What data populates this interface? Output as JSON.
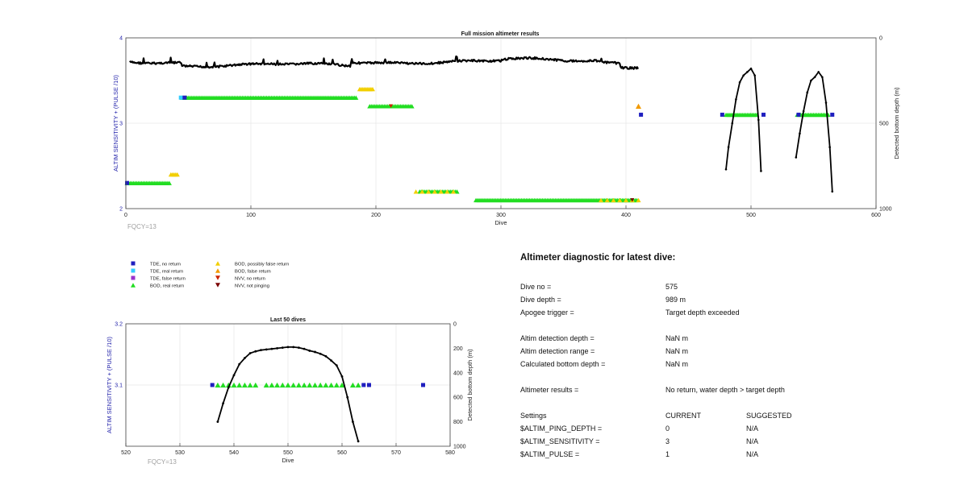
{
  "chart_data": [
    {
      "type": "scatter",
      "title": "Full mission altimeter results",
      "xlabel": "Dive",
      "ylabel": "ALTIM SENSITIVITY + (PULSE /10)",
      "y2label": "Detected bottom depth (m)",
      "xlim": [
        0,
        600
      ],
      "ylim": [
        2,
        4
      ],
      "y2lim": [
        0,
        1000
      ],
      "y2_reversed": true,
      "xticks": [
        0,
        100,
        200,
        300,
        400,
        500,
        600
      ],
      "yticks": [
        2,
        3,
        4
      ],
      "y2ticks": [
        0,
        500,
        1000
      ],
      "annotation": "FQCY=13",
      "grid": true,
      "bod_real_segments": [
        [
          1,
          35,
          2.3
        ],
        [
          45,
          185,
          3.3
        ],
        [
          195,
          230,
          3.2
        ],
        [
          235,
          265,
          2.2
        ],
        [
          280,
          410,
          2.1
        ],
        [
          480,
          505,
          3.1
        ],
        [
          537,
          562,
          3.1
        ]
      ],
      "bod_possibly_false_segments": [
        [
          36,
          42,
          2.4
        ],
        [
          187,
          198,
          3.4
        ],
        [
          232,
          265,
          2.2
        ],
        [
          380,
          410,
          2.1
        ]
      ],
      "tde_no_return": [
        [
          1,
          2.3
        ],
        [
          47,
          3.3
        ],
        [
          412,
          3.1
        ],
        [
          477,
          3.1
        ],
        [
          510,
          3.1
        ],
        [
          538,
          3.1
        ],
        [
          565,
          3.1
        ]
      ],
      "tde_real_return": [
        [
          44,
          3.3
        ]
      ],
      "bod_false_return": [
        [
          410,
          3.2
        ]
      ],
      "nvv_no_return": [
        [
          212,
          3.2
        ]
      ],
      "nvv_not_pinging": [
        [
          405,
          2.1
        ]
      ],
      "mission_depth_line": {
        "x_start": 3,
        "x_end": 410,
        "base": 140,
        "amplitude": 15
      },
      "bottom_depth_arch1": {
        "x": [
          480,
          482,
          485,
          488,
          491,
          494,
          497,
          500,
          503,
          506,
          508
        ],
        "y": [
          770,
          640,
          500,
          360,
          260,
          220,
          200,
          180,
          220,
          480,
          780
        ]
      },
      "bottom_depth_arch2": {
        "x": [
          536,
          539,
          542,
          545,
          548,
          551,
          554,
          557,
          560,
          563,
          565
        ],
        "y": [
          700,
          560,
          430,
          320,
          250,
          230,
          200,
          230,
          380,
          640,
          900
        ]
      }
    },
    {
      "type": "scatter",
      "title": "Last 50 dives",
      "xlabel": "Dive",
      "ylabel": "ALTIM SENSITIVITY + (PULSE /10)",
      "y2label": "Detected bottom depth (m)",
      "xlim": [
        520,
        580
      ],
      "ylim": [
        3.0,
        3.2
      ],
      "y2lim": [
        0,
        1000
      ],
      "y2_reversed": true,
      "xticks": [
        520,
        530,
        540,
        550,
        560,
        570,
        580
      ],
      "yticks": [
        "3.1",
        "3.2"
      ],
      "y2ticks": [
        0,
        200,
        400,
        600,
        800,
        1000
      ],
      "annotation": "FQCY=13",
      "grid": true,
      "tde_no_return": [
        [
          536,
          3.1
        ],
        [
          564,
          3.1
        ],
        [
          565,
          3.1
        ],
        [
          575,
          3.1
        ]
      ],
      "bod_real": [
        [
          537,
          3.1
        ],
        [
          538,
          3.1
        ],
        [
          539,
          3.1
        ],
        [
          540,
          3.1
        ],
        [
          541,
          3.1
        ],
        [
          542,
          3.1
        ],
        [
          543,
          3.1
        ],
        [
          544,
          3.1
        ],
        [
          546,
          3.1
        ],
        [
          547,
          3.1
        ],
        [
          548,
          3.1
        ],
        [
          549,
          3.1
        ],
        [
          550,
          3.1
        ],
        [
          551,
          3.1
        ],
        [
          552,
          3.1
        ],
        [
          553,
          3.1
        ],
        [
          554,
          3.1
        ],
        [
          555,
          3.1
        ],
        [
          556,
          3.1
        ],
        [
          557,
          3.1
        ],
        [
          558,
          3.1
        ],
        [
          559,
          3.1
        ],
        [
          560,
          3.1
        ],
        [
          562,
          3.1
        ],
        [
          563,
          3.1
        ]
      ],
      "bottom_depth": {
        "x": [
          537,
          538,
          539,
          540,
          541,
          542,
          543,
          544,
          545,
          546,
          547,
          548,
          549,
          550,
          551,
          552,
          553,
          554,
          555,
          556,
          557,
          558,
          559,
          560,
          561,
          562,
          563
        ],
        "y": [
          800,
          650,
          520,
          420,
          330,
          280,
          240,
          225,
          215,
          210,
          205,
          200,
          195,
          190,
          190,
          195,
          205,
          220,
          230,
          245,
          265,
          300,
          340,
          430,
          600,
          800,
          960
        ]
      }
    }
  ],
  "legend": [
    {
      "label": "TDE, no return",
      "color": "#1f1fbf",
      "shape": "square"
    },
    {
      "label": "BOD, possibly false return",
      "color": "#f2cf00",
      "shape": "triangle"
    },
    {
      "label": "TDE, real return",
      "color": "#33ccff",
      "shape": "square"
    },
    {
      "label": "BOD, false return",
      "color": "#f29a00",
      "shape": "triangle"
    },
    {
      "label": "TDE, false return",
      "color": "#9933cc",
      "shape": "square"
    },
    {
      "label": "NVV, no return",
      "color": "#cc2200",
      "shape": "triangle-down"
    },
    {
      "label": "BOD, real return",
      "color": "#22dd22",
      "shape": "triangle"
    },
    {
      "label": "NVV, not pinging",
      "color": "#7a0000",
      "shape": "triangle-down"
    }
  ],
  "diagnostic": {
    "title": "Altimeter diagnostic for latest dive:",
    "group1": [
      {
        "key": "Dive no =",
        "value": "575"
      },
      {
        "key": "Dive depth =",
        "value": "989 m"
      },
      {
        "key": "Apogee trigger =",
        "value": "Target depth exceeded"
      }
    ],
    "group2": [
      {
        "key": "Altim detection depth =",
        "value": "NaN m"
      },
      {
        "key": "Altim detection range =",
        "value": "NaN m"
      },
      {
        "key": "Calculated bottom depth =",
        "value": "NaN m"
      }
    ],
    "results": {
      "key": "Altimeter results =",
      "value": "No return, water depth > target depth"
    },
    "settings_header": {
      "key": "Settings",
      "current": "CURRENT",
      "suggested": "SUGGESTED"
    },
    "settings": [
      {
        "key": "$ALTIM_PING_DEPTH =",
        "current": "0",
        "suggested": "N/A"
      },
      {
        "key": "$ALTIM_SENSITIVITY =",
        "current": "3",
        "suggested": "N/A"
      },
      {
        "key": "$ALTIM_PULSE =",
        "current": "1",
        "suggested": "N/A"
      }
    ]
  },
  "colors": {
    "tde_no_return": "#1f1fbf",
    "tde_real_return": "#33ccff",
    "tde_false_return": "#9933cc",
    "bod_real_return": "#22dd22",
    "bod_possibly_false": "#f2cf00",
    "bod_false_return": "#f29a00",
    "nvv_no_return": "#cc2200",
    "nvv_not_pinging": "#7a0000",
    "left_axis_label": "#2222aa",
    "grid": "#e6e6e6",
    "annotation": "#a0a0a0"
  }
}
